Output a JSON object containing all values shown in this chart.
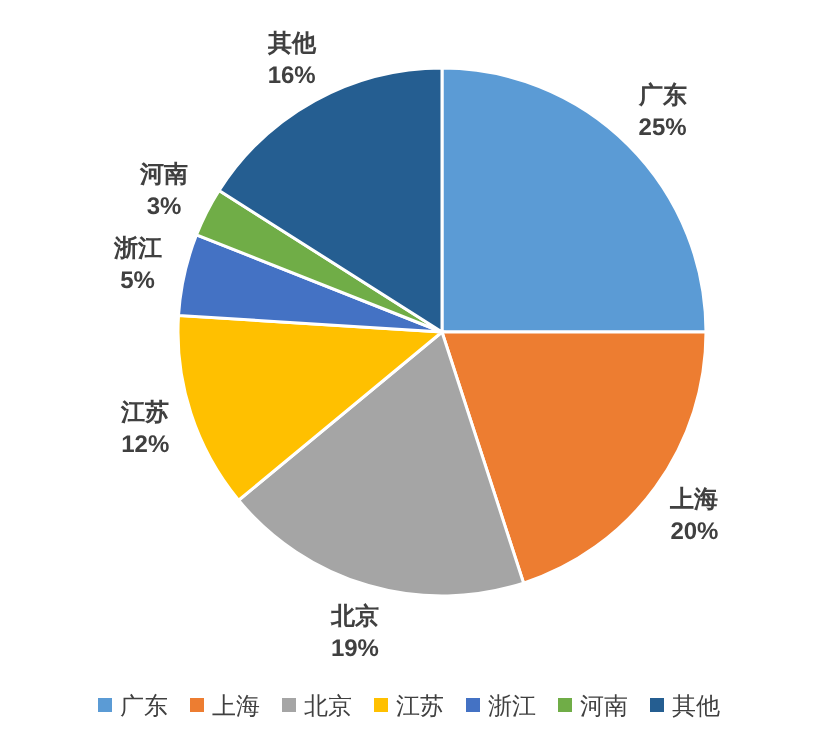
{
  "chart_data": {
    "type": "pie",
    "categories": [
      "广东",
      "上海",
      "北京",
      "江苏",
      "浙江",
      "河南",
      "其他"
    ],
    "values": [
      25,
      20,
      19,
      12,
      5,
      3,
      16
    ],
    "colors": [
      "#5b9bd5",
      "#ed7d31",
      "#a5a5a5",
      "#ffc000",
      "#4472c4",
      "#70ad47",
      "#255e91"
    ],
    "value_labels": [
      "25%",
      "20%",
      "19%",
      "12%",
      "5%",
      "3%",
      "16%"
    ],
    "legend": "bottom"
  }
}
